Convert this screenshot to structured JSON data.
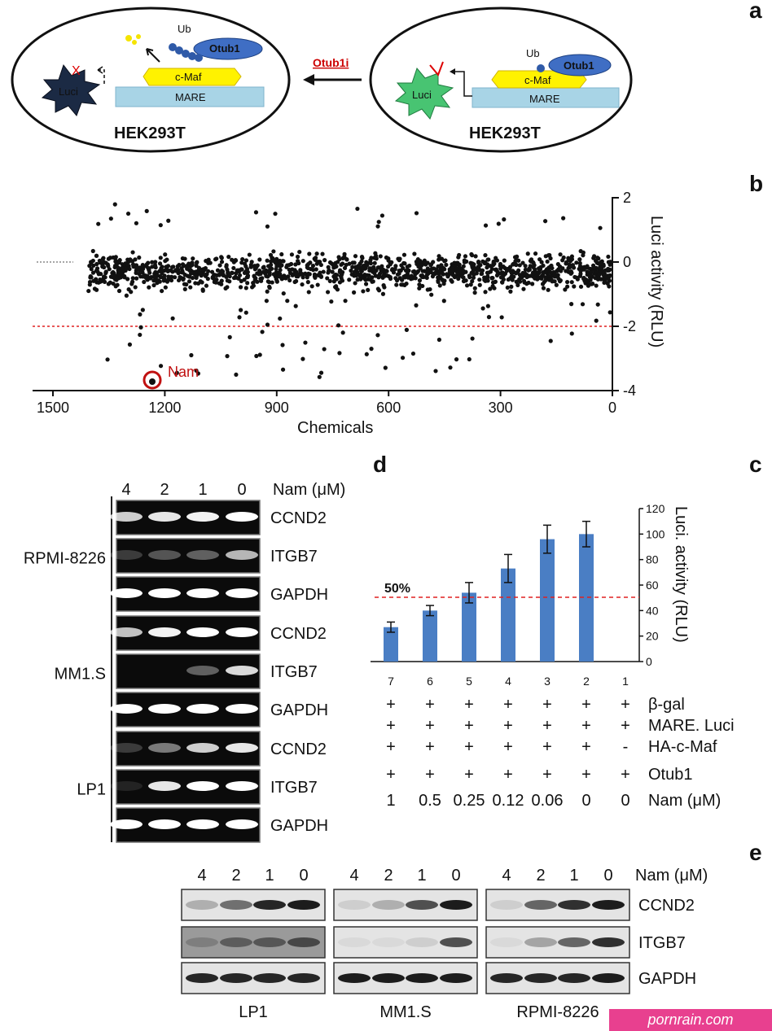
{
  "panel_a": {
    "label": "a",
    "left_cell": {
      "cell_line": "HEK293T",
      "protein_1": "Otub1",
      "protein_2": "c-Maf",
      "ub": "Ub",
      "mare": "MARE",
      "luci": "Luci",
      "block": "X"
    },
    "right_cell": {
      "cell_line": "HEK293T",
      "protein_1": "Otub1",
      "protein_2": "c-Maf",
      "ub": "Ub",
      "mare": "MARE",
      "luci": "Luci"
    },
    "arrow_label": "Otub1i"
  },
  "panel_b": {
    "label": "b",
    "xlabel": "Chemicals",
    "ylabel": "Luci activity (RLU)",
    "highlight": "Nam",
    "x_ticks": [
      "0",
      "300",
      "600",
      "900",
      "1200",
      "1500"
    ],
    "y_ticks": [
      "2",
      "0",
      "-2",
      "-4"
    ]
  },
  "panel_c": {
    "label": "c",
    "label_d": "d",
    "ylabel": "Luci. activity (RLU)",
    "threshold_label": "50%",
    "y_ticks": [
      "0",
      "20",
      "40",
      "60",
      "80",
      "100",
      "120"
    ],
    "row_labels": [
      "β-gal",
      "MARE. Luci",
      "HA-c-Maf",
      "Otub1",
      "Nam (μM)"
    ],
    "columns": [
      {
        "lane": "1",
        "b_gal": "+",
        "mare_luci": "+",
        "ha_c_maf": "-",
        "otub1": "+",
        "nam": "0"
      },
      {
        "lane": "2",
        "b_gal": "+",
        "mare_luci": "+",
        "ha_c_maf": "+",
        "otub1": "+",
        "nam": "0"
      },
      {
        "lane": "3",
        "b_gal": "+",
        "mare_luci": "+",
        "ha_c_maf": "+",
        "otub1": "+",
        "nam": "0.06"
      },
      {
        "lane": "4",
        "b_gal": "+",
        "mare_luci": "+",
        "ha_c_maf": "+",
        "otub1": "+",
        "nam": "0.12"
      },
      {
        "lane": "5",
        "b_gal": "+",
        "mare_luci": "+",
        "ha_c_maf": "+",
        "otub1": "+",
        "nam": "0.25"
      },
      {
        "lane": "6",
        "b_gal": "+",
        "mare_luci": "+",
        "ha_c_maf": "+",
        "otub1": "+",
        "nam": "0.5"
      },
      {
        "lane": "7",
        "b_gal": "+",
        "mare_luci": "+",
        "ha_c_maf": "+",
        "otub1": "+",
        "nam": "1"
      }
    ]
  },
  "panel_d": {
    "nam_header": "Nam (μM)",
    "concentrations": [
      "0",
      "1",
      "2",
      "4"
    ],
    "groups": [
      {
        "cell_line": "RPMI-8226",
        "genes": [
          "CCND2",
          "ITGB7",
          "GAPDH"
        ]
      },
      {
        "cell_line": "MM1.S",
        "genes": [
          "CCND2",
          "ITGB7",
          "GAPDH"
        ]
      },
      {
        "cell_line": "LP1",
        "genes": [
          "CCND2",
          "ITGB7",
          "GAPDH"
        ]
      }
    ]
  },
  "panel_e": {
    "label": "e",
    "nam_header": "Nam (μM)",
    "genes": [
      "CCND2",
      "ITGB7",
      "GAPDH"
    ],
    "groups": [
      {
        "cell_line": "RPMI-8226",
        "concentrations": [
          "0",
          "1",
          "2",
          "4"
        ]
      },
      {
        "cell_line": "MM1.S",
        "concentrations": [
          "0",
          "1",
          "2",
          "4"
        ]
      },
      {
        "cell_line": "LP1",
        "concentrations": [
          "0",
          "1",
          "2",
          "4"
        ]
      }
    ]
  },
  "chart_data": [
    {
      "type": "scatter",
      "title": "",
      "xlabel": "Chemicals",
      "ylabel": "Luci activity (RLU)",
      "xlim": [
        0,
        1500
      ],
      "ylim": [
        -4,
        2
      ],
      "threshold": -2,
      "highlighted_point": {
        "name": "Nam",
        "x": 1250,
        "y": -3.6
      }
    },
    {
      "type": "bar",
      "categories": [
        "1",
        "2",
        "3",
        "4",
        "5",
        "6",
        "7"
      ],
      "values": [
        0,
        100,
        96,
        73,
        54,
        40,
        27
      ],
      "errors": [
        0,
        10,
        11,
        11,
        8,
        4,
        4
      ],
      "ylabel": "Luci. activity (RLU)",
      "ylim": [
        0,
        120
      ],
      "threshold": 50,
      "color": "#4a7ec4"
    }
  ],
  "watermark": "pornrain.com"
}
